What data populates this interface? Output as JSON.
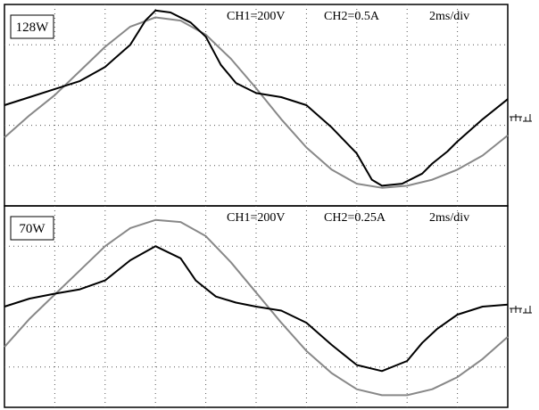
{
  "chart_data": [
    {
      "type": "line",
      "title": "128W",
      "annotations": [
        "CH1=200V",
        "CH2=0.5A",
        "2ms/div"
      ],
      "x_unit": "div",
      "xlim": [
        0,
        10
      ],
      "ylim": [
        -2.5,
        2.5
      ],
      "grid": true,
      "series": [
        {
          "color": "#888888",
          "x": [
            0,
            0.5,
            1,
            1.5,
            2,
            2.5,
            3,
            3.5,
            4,
            4.5,
            5,
            5.5,
            6,
            6.5,
            7,
            7.5,
            8,
            8.5,
            9,
            9.5,
            10
          ],
          "y": [
            -0.8,
            -0.25,
            0.25,
            0.85,
            1.45,
            1.95,
            2.18,
            2.1,
            1.75,
            1.15,
            0.42,
            -0.35,
            -1.05,
            -1.6,
            -1.95,
            -2.05,
            -2.0,
            -1.85,
            -1.6,
            -1.25,
            -0.75
          ]
        },
        {
          "color": "#000000",
          "x": [
            0,
            0.5,
            1,
            1.5,
            2,
            2.5,
            2.8,
            3.0,
            3.3,
            3.7,
            4.0,
            4.3,
            4.6,
            5,
            5.5,
            6,
            6.5,
            7,
            7.3,
            7.5,
            7.9,
            8.3,
            8.5,
            8.8,
            9,
            9.5,
            10
          ],
          "y": [
            0.0,
            0.2,
            0.4,
            0.6,
            0.95,
            1.5,
            2.1,
            2.35,
            2.3,
            2.05,
            1.7,
            1.0,
            0.55,
            0.3,
            0.2,
            0.0,
            -0.55,
            -1.2,
            -1.85,
            -2.0,
            -1.95,
            -1.7,
            -1.45,
            -1.15,
            -0.9,
            -0.35,
            0.15
          ]
        }
      ]
    },
    {
      "type": "line",
      "title": "70W",
      "annotations": [
        "CH1=200V",
        "CH2=0.25A",
        "2ms/div"
      ],
      "x_unit": "div",
      "xlim": [
        0,
        10
      ],
      "ylim": [
        -2.5,
        2.5
      ],
      "grid": true,
      "series": [
        {
          "color": "#888888",
          "x": [
            0,
            0.5,
            1,
            1.5,
            2,
            2.5,
            3,
            3.5,
            4,
            4.5,
            5,
            5.5,
            6,
            6.5,
            7,
            7.5,
            8,
            8.5,
            9,
            9.5,
            10
          ],
          "y": [
            -1.0,
            -0.3,
            0.3,
            0.9,
            1.5,
            1.95,
            2.15,
            2.1,
            1.75,
            1.1,
            0.35,
            -0.4,
            -1.1,
            -1.65,
            -2.05,
            -2.2,
            -2.2,
            -2.05,
            -1.75,
            -1.3,
            -0.75
          ]
        },
        {
          "color": "#000000",
          "x": [
            0,
            0.5,
            1,
            1.5,
            2,
            2.5,
            3.0,
            3.5,
            3.8,
            4.2,
            4.6,
            5,
            5.5,
            6,
            6.5,
            7,
            7.5,
            8,
            8.3,
            8.6,
            9,
            9.5,
            10
          ],
          "y": [
            0.0,
            0.2,
            0.32,
            0.43,
            0.65,
            1.15,
            1.5,
            1.2,
            0.65,
            0.25,
            0.1,
            0.0,
            -0.1,
            -0.4,
            -0.95,
            -1.45,
            -1.6,
            -1.35,
            -0.9,
            -0.55,
            -0.2,
            0.0,
            0.05
          ]
        }
      ]
    }
  ]
}
